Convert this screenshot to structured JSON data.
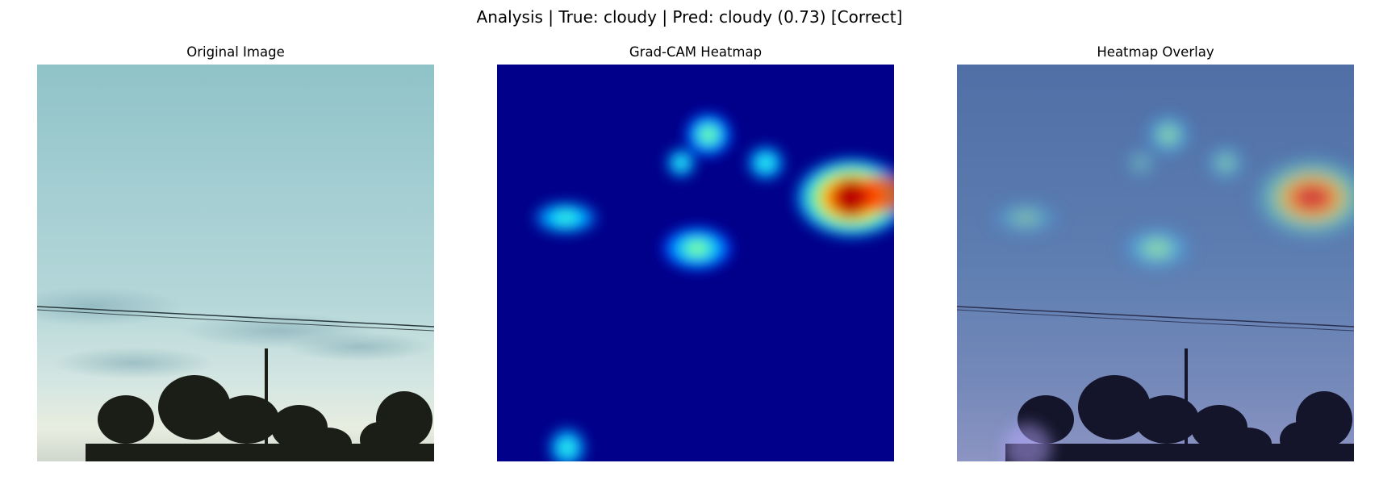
{
  "figure": {
    "title": "Analysis | True: cloudy | Pred: cloudy (0.73) [Correct]"
  },
  "panels": [
    {
      "title": "Original Image"
    },
    {
      "title": "Grad-CAM Heatmap"
    },
    {
      "title": "Heatmap Overlay"
    }
  ],
  "heatmap": {
    "colormap": "jet",
    "background_color": "#00008a",
    "hotspots": [
      {
        "id": "top-blob",
        "intensity": 0.55
      },
      {
        "id": "small-left-blob",
        "intensity": 0.35
      },
      {
        "id": "mid-top-blob",
        "intensity": 0.45
      },
      {
        "id": "right-hot-blob",
        "intensity": 1.0
      },
      {
        "id": "left-blob",
        "intensity": 0.45
      },
      {
        "id": "center-blob",
        "intensity": 0.6
      },
      {
        "id": "bottom-blob",
        "intensity": 0.4
      }
    ]
  }
}
